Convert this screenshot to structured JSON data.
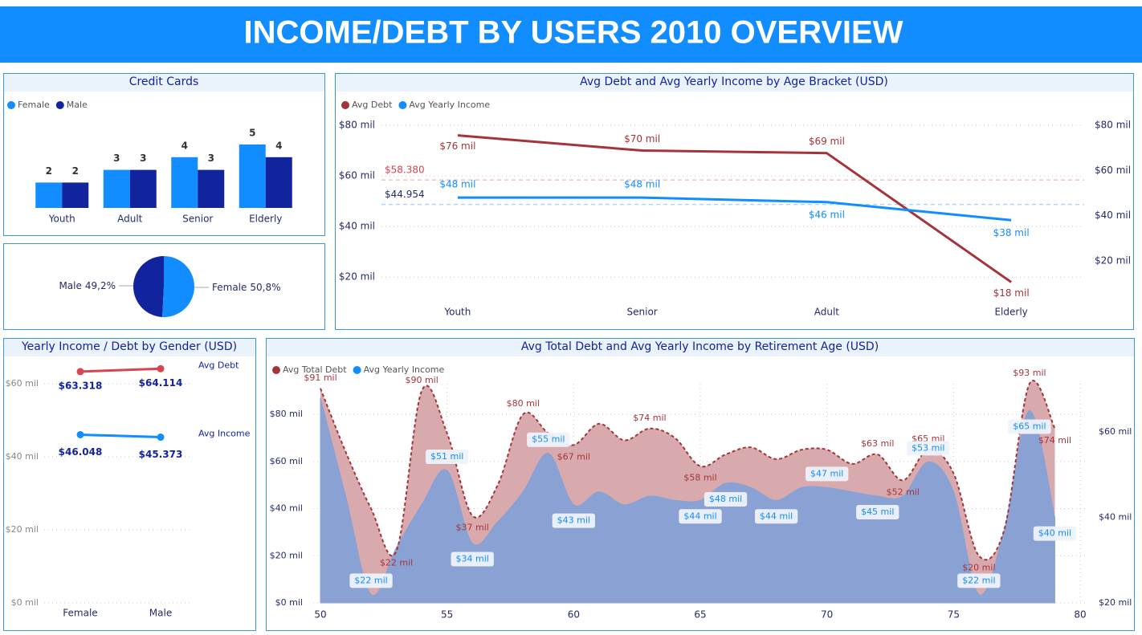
{
  "title": "INCOME/DEBT BY USERS 2010 OVERVIEW",
  "chart_data": [
    {
      "type": "bar",
      "title": "Credit Cards",
      "legend": "top-left",
      "categories": [
        "Youth",
        "Adult",
        "Senior",
        "Elderly"
      ],
      "series": [
        {
          "name": "Female",
          "color": "#118dff",
          "values": [
            2,
            3,
            4,
            5
          ]
        },
        {
          "name": "Male",
          "color": "#12239e",
          "values": [
            2,
            3,
            3,
            4
          ]
        }
      ]
    },
    {
      "type": "pie",
      "categories": [
        "Male",
        "Female"
      ],
      "values": [
        49.2,
        50.8
      ],
      "value_labels": [
        "49,2%",
        "50,8%"
      ],
      "colors": [
        "#12239e",
        "#118dff"
      ]
    },
    {
      "type": "line",
      "title": "Avg Debt and Avg Yearly Income by Age Bracket (USD)",
      "legend": "top-left",
      "grid": true,
      "categories": [
        "Youth",
        "Senior",
        "Adult",
        "Elderly"
      ],
      "series": [
        {
          "name": "Avg Debt",
          "color": "#a4343a",
          "values": [
            76,
            70,
            69,
            18
          ],
          "value_labels": [
            "$76 mil",
            "$70 mil",
            "$69 mil",
            "$18 mil"
          ]
        },
        {
          "name": "Avg Yearly Income",
          "color": "#118dff",
          "axis": "y2",
          "values": [
            48,
            48,
            46,
            38
          ],
          "value_labels": [
            "$48 mil",
            "$48 mil",
            "$46 mil",
            "$38 mil"
          ]
        }
      ],
      "ylim": [
        13.7,
        83.5
      ],
      "yticks": [
        {
          "value": 20,
          "label": "$20 mil"
        },
        {
          "value": 40,
          "label": "$40 mil"
        },
        {
          "value": 60,
          "label": "$60 mil"
        },
        {
          "value": 80,
          "label": "$80 mil"
        }
      ],
      "y2lim": [
        5.8,
        83.9
      ],
      "y2ticks": [
        {
          "value": 20,
          "label": "$20 mil"
        },
        {
          "value": 40,
          "label": "$40 mil"
        },
        {
          "value": 60,
          "label": "$60 mil"
        },
        {
          "value": 80,
          "label": "$80 mil"
        }
      ],
      "reference_lines": [
        {
          "value": 58.38,
          "label": "$58.380",
          "color": "#d64550"
        },
        {
          "value": 44.954,
          "label": "$44.954",
          "color": "#118dff",
          "axis": "y2"
        }
      ]
    },
    {
      "type": "line",
      "title": "Yearly Income / Debt by Gender (USD)",
      "grid": true,
      "categories": [
        "Female",
        "Male"
      ],
      "series": [
        {
          "name": "Avg Debt",
          "color": "#d64550",
          "values": [
            63.318,
            64.114
          ],
          "value_labels": [
            "$63.318",
            "$64.114"
          ]
        },
        {
          "name": "Avg Income",
          "color": "#118dff",
          "values": [
            46.048,
            45.373
          ],
          "value_labels": [
            "$46.048",
            "$45.373"
          ]
        }
      ],
      "ylim": [
        0,
        66
      ],
      "yticks": [
        {
          "value": 0,
          "label": "$0 mil"
        },
        {
          "value": 20,
          "label": "$20 mil"
        },
        {
          "value": 40,
          "label": "$40 mil"
        },
        {
          "value": 60,
          "label": "$60 mil"
        }
      ]
    },
    {
      "type": "area",
      "title": "Avg Total Debt and Avg Yearly Income by Retirement Age (USD)",
      "legend": "top-left",
      "grid": true,
      "x": [
        50,
        51,
        52,
        53,
        54,
        55,
        56,
        57,
        58,
        59,
        60,
        61,
        62,
        63,
        64,
        65,
        66,
        67,
        68,
        69,
        70,
        71,
        72,
        73,
        74,
        75,
        76,
        77,
        78,
        79
      ],
      "series": [
        {
          "name": "Avg Total Debt",
          "color": "#a4343a",
          "fill": "#d8aaad",
          "values": [
            91,
            64,
            40,
            22,
            90,
            72,
            37,
            50,
            80,
            72,
            67,
            76,
            69,
            74,
            70,
            58,
            63,
            66,
            61,
            65,
            65,
            59,
            63,
            52,
            65,
            55,
            20,
            31,
            93,
            74
          ],
          "value_labels": [
            "$91 mil",
            null,
            null,
            "$22 mil",
            "$90 mil",
            null,
            "$37 mil",
            null,
            "$80 mil",
            null,
            "$67 mil",
            null,
            null,
            "$74 mil",
            null,
            "$58 mil",
            null,
            null,
            null,
            null,
            null,
            null,
            "$63 mil",
            "$52 mil",
            "$65 mil",
            null,
            "$20 mil",
            null,
            "$93 mil",
            "$74 mil"
          ]
        },
        {
          "name": "Avg Yearly Income",
          "color": "#118dff",
          "fill": "#8aa2d3",
          "axis": "y2",
          "values": [
            68,
            45,
            22,
            33,
            43,
            51,
            34,
            39,
            46,
            55,
            43,
            46,
            43,
            45,
            44,
            44,
            48,
            47,
            44,
            47,
            47,
            46,
            45,
            45,
            53,
            46,
            22,
            37,
            65,
            40
          ],
          "value_labels": [
            null,
            null,
            "$22 mil",
            null,
            null,
            "$51 mil",
            "$34 mil",
            null,
            null,
            "$55 mil",
            "$43 mil",
            null,
            null,
            null,
            null,
            "$44 mil",
            "$48 mil",
            null,
            "$44 mil",
            null,
            "$47 mil",
            null,
            "$45 mil",
            null,
            "$53 mil",
            null,
            "$22 mil",
            null,
            "$65 mil",
            "$40 mil"
          ]
        }
      ],
      "xlim": [
        50,
        80
      ],
      "xticks": [
        50,
        55,
        60,
        65,
        70,
        75,
        80
      ],
      "ylim": [
        0,
        93
      ],
      "yticks": [
        {
          "value": 0,
          "label": "$0 mil"
        },
        {
          "value": 20,
          "label": "$20 mil"
        },
        {
          "value": 40,
          "label": "$40 mil"
        },
        {
          "value": 60,
          "label": "$60 mil"
        },
        {
          "value": 80,
          "label": "$80 mil"
        }
      ],
      "y2lim": [
        20,
        71.3
      ],
      "y2ticks": [
        {
          "value": 20,
          "label": "$20 mil"
        },
        {
          "value": 40,
          "label": "$40 mil"
        },
        {
          "value": 60,
          "label": "$60 mil"
        }
      ]
    }
  ]
}
